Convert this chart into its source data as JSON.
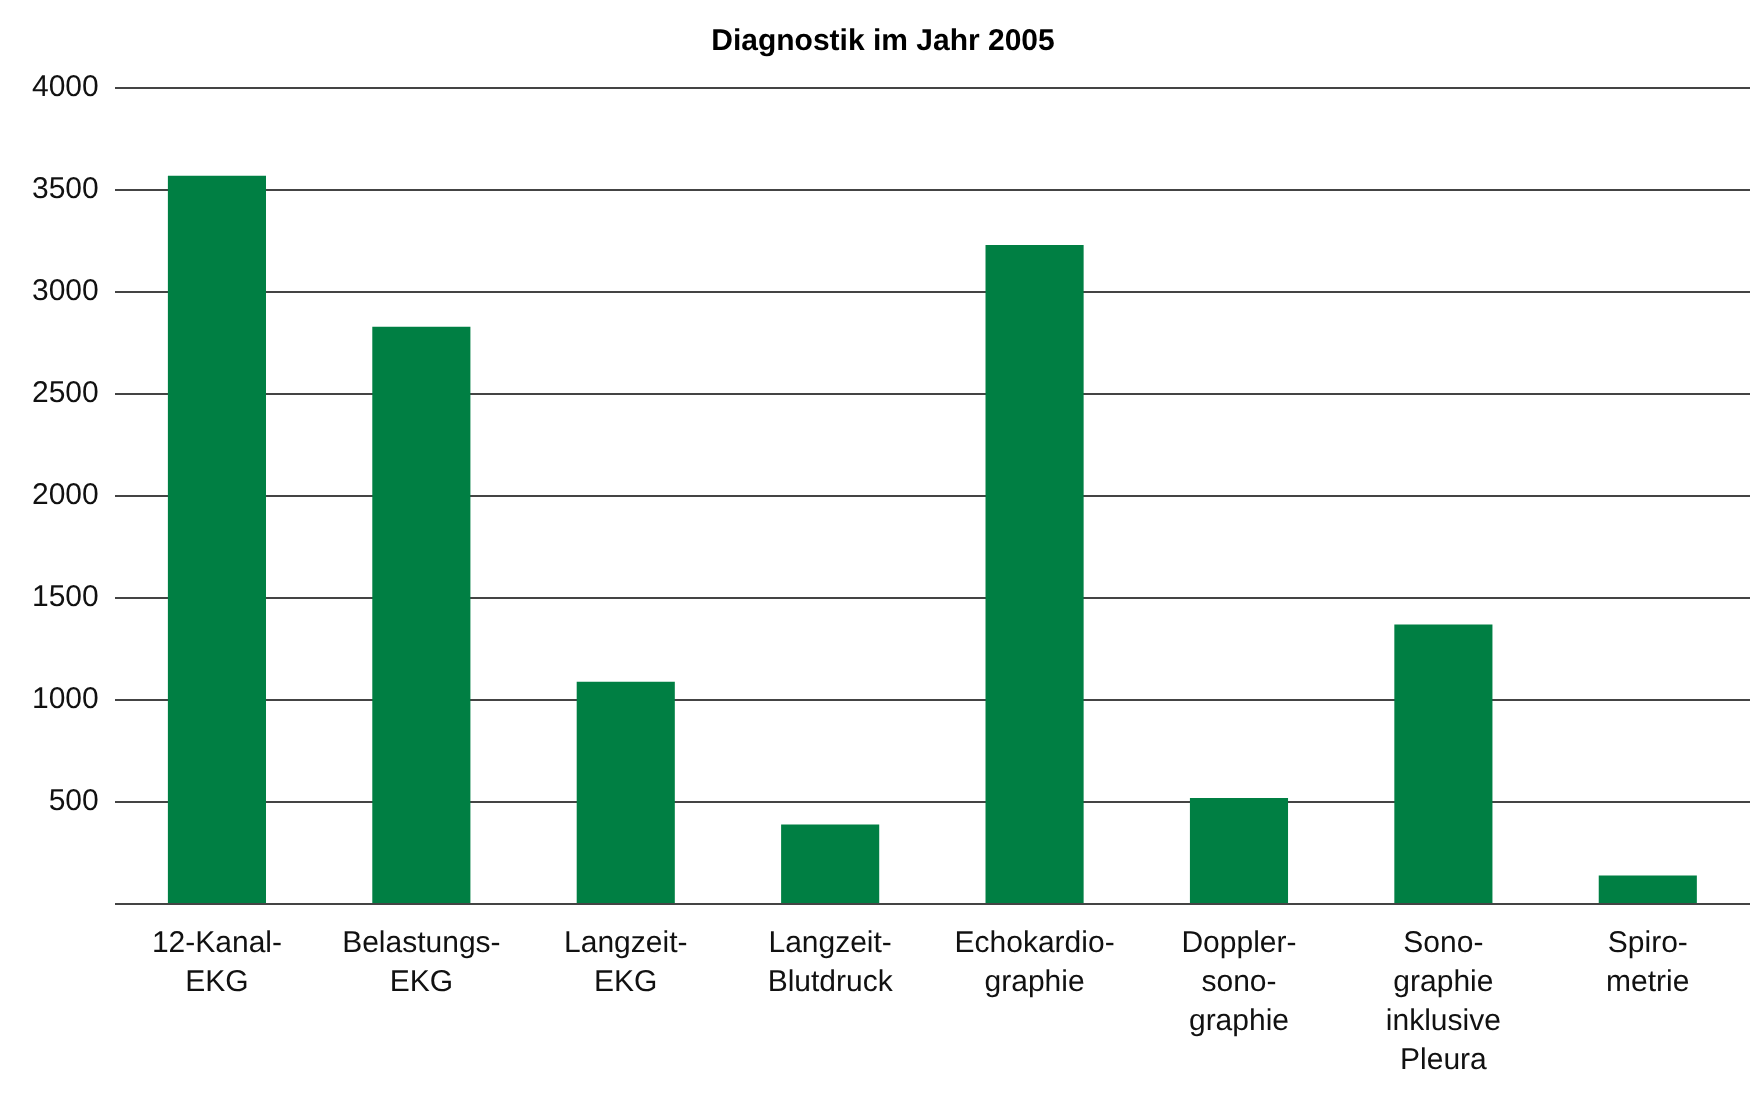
{
  "chart_data": {
    "type": "bar",
    "title": "Diagnostik im Jahr 2005",
    "categories": [
      "12-Kanal-\nEKG",
      "Belastungs-\nEKG",
      "Langzeit-\nEKG",
      "Langzeit-\nBlutdruck",
      "Echokardio-\ngraphie",
      "Doppler-\nsono-\ngraphie",
      "Sono-\ngraphie\ninklusive\nPleura",
      "Spiro-\nmetrie"
    ],
    "values": [
      3570,
      2830,
      1090,
      390,
      3230,
      520,
      1370,
      140
    ],
    "color": "#007f43",
    "ylim": [
      0,
      4000
    ],
    "yticks": [
      {
        "value": 0,
        "label": null
      },
      500,
      1000,
      1500,
      2000,
      2500,
      3000,
      3500,
      4000
    ],
    "grid": "y",
    "legend": false
  }
}
